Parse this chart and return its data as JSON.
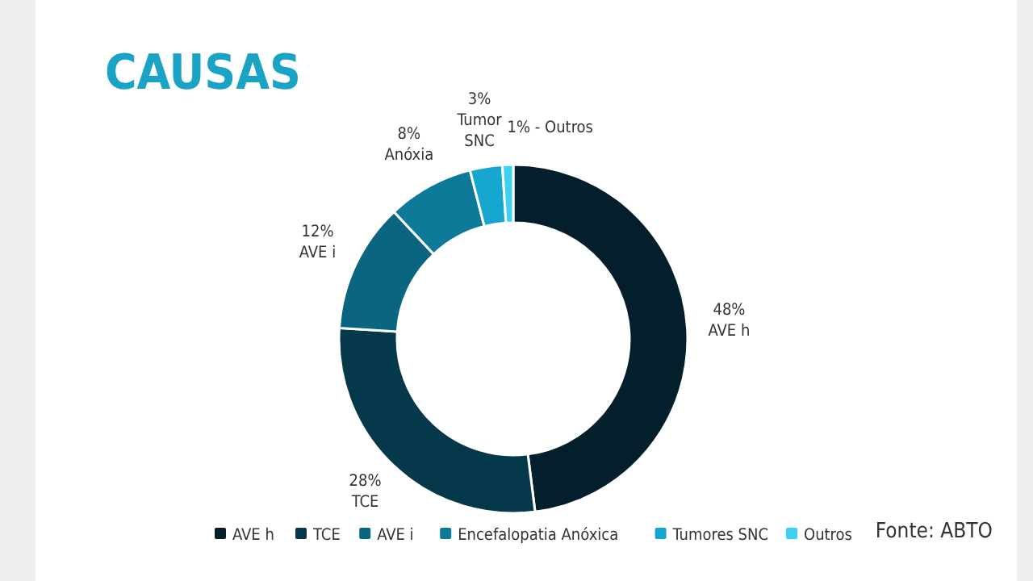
{
  "chart_data": {
    "type": "donut",
    "title": "CAUSAS",
    "categories": [
      "AVE h",
      "TCE",
      "AVE i",
      "Encefalopatia Anóxica",
      "Tumores SNC",
      "Outros"
    ],
    "values": [
      48,
      28,
      12,
      8,
      3,
      1
    ],
    "colors": [
      "#021f2b",
      "#04384a",
      "#0a6680",
      "#0e7a9a",
      "#17a6cf",
      "#3dd0f0"
    ],
    "value_labels": [
      "48%\nAVE h",
      "28%\nTCE",
      "12%\nAVE i",
      "8%\nAnóxia",
      "3%\nTumor\nSNC",
      "1% - Outros"
    ],
    "legend": "bottom",
    "annotations": [
      "Fonte: ABTO"
    ]
  }
}
